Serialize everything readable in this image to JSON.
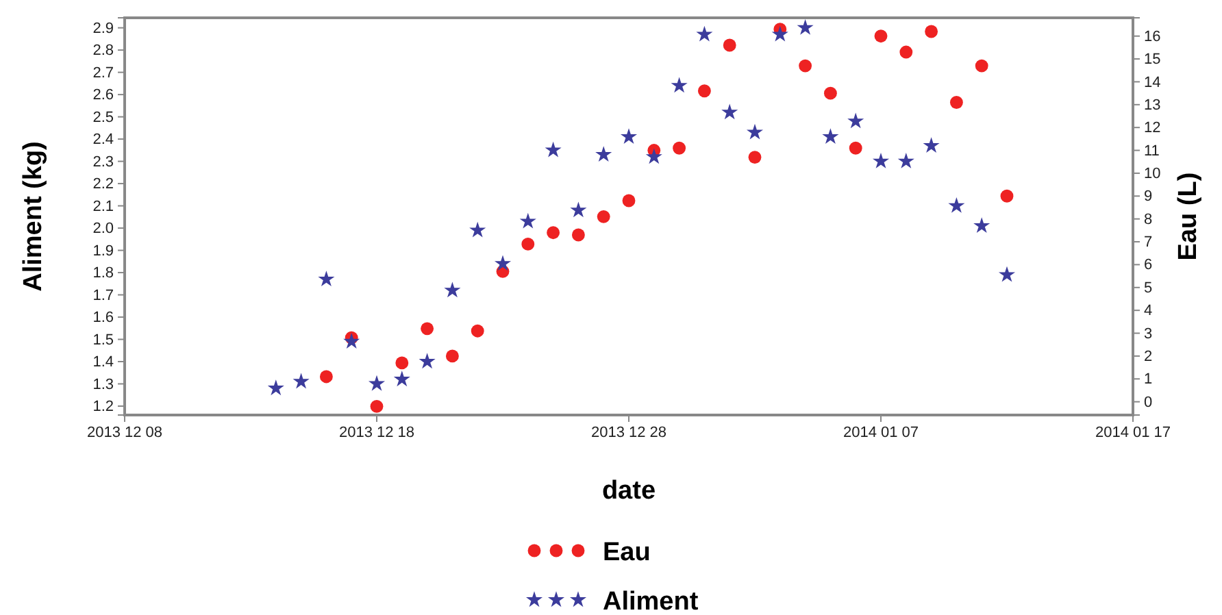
{
  "chart_data": {
    "type": "scatter",
    "xlabel": "date",
    "ylabel": "Aliment (kg)",
    "y2label": "Eau (L)",
    "legend": "bottom",
    "x": [
      "2013-12-14",
      "2013-12-15",
      "2013-12-16",
      "2013-12-17",
      "2013-12-18",
      "2013-12-19",
      "2013-12-20",
      "2013-12-21",
      "2013-12-22",
      "2013-12-23",
      "2013-12-24",
      "2013-12-25",
      "2013-12-26",
      "2013-12-27",
      "2013-12-28",
      "2013-12-29",
      "2013-12-30",
      "2013-12-31",
      "2014-01-01",
      "2014-01-02",
      "2014-01-03",
      "2014-01-04",
      "2014-01-05",
      "2014-01-06",
      "2014-01-07",
      "2014-01-08",
      "2014-01-09",
      "2014-01-10",
      "2014-01-11",
      "2014-01-12"
    ],
    "series": [
      {
        "name": "Eau",
        "color": "#ee2222",
        "axis": "y2",
        "marker": "circle",
        "values": [
          null,
          null,
          1.1,
          2.8,
          -0.2,
          1.7,
          3.2,
          2.0,
          3.1,
          5.7,
          6.9,
          7.4,
          7.3,
          8.1,
          8.8,
          11.0,
          11.1,
          13.6,
          15.6,
          10.7,
          16.3,
          14.7,
          13.5,
          11.1,
          16.0,
          15.3,
          16.2,
          13.1,
          14.7,
          9.0
        ]
      },
      {
        "name": "Aliment",
        "color": "#3c3c9c",
        "marker": "star",
        "values": [
          1.28,
          1.31,
          1.77,
          1.49,
          1.3,
          1.32,
          1.4,
          1.72,
          1.99,
          1.84,
          2.03,
          2.35,
          2.08,
          2.33,
          2.41,
          2.32,
          2.64,
          2.87,
          2.52,
          2.43,
          2.87,
          2.9,
          2.41,
          2.48,
          2.3,
          2.3,
          2.37,
          2.1,
          2.01,
          1.79
        ]
      }
    ],
    "xlim": [
      "2013-12-08",
      "2014-01-17"
    ],
    "xticks": [
      {
        "value": "2013-12-08",
        "label": "2013 12 08"
      },
      {
        "value": "2013-12-18",
        "label": "2013 12 18"
      },
      {
        "value": "2013-12-28",
        "label": "2013 12 28"
      },
      {
        "value": "2014-01-07",
        "label": "2014 01 07"
      },
      {
        "value": "2014-01-17",
        "label": "2014 01 17"
      }
    ],
    "ylim": [
      1.16,
      2.945
    ],
    "yticks": [
      1.2,
      1.3,
      1.4,
      1.5,
      1.6,
      1.7,
      1.8,
      1.9,
      {
        "value": 2,
        "label": "2.0"
      },
      2.1,
      2.2,
      2.3,
      2.4,
      2.5,
      2.6,
      2.7,
      2.8,
      2.9
    ],
    "y2lim": [
      -0.58,
      16.8
    ],
    "y2ticks": [
      0,
      1,
      2,
      3,
      4,
      5,
      6,
      7,
      8,
      9,
      10,
      11,
      12,
      13,
      14,
      15,
      16
    ]
  }
}
